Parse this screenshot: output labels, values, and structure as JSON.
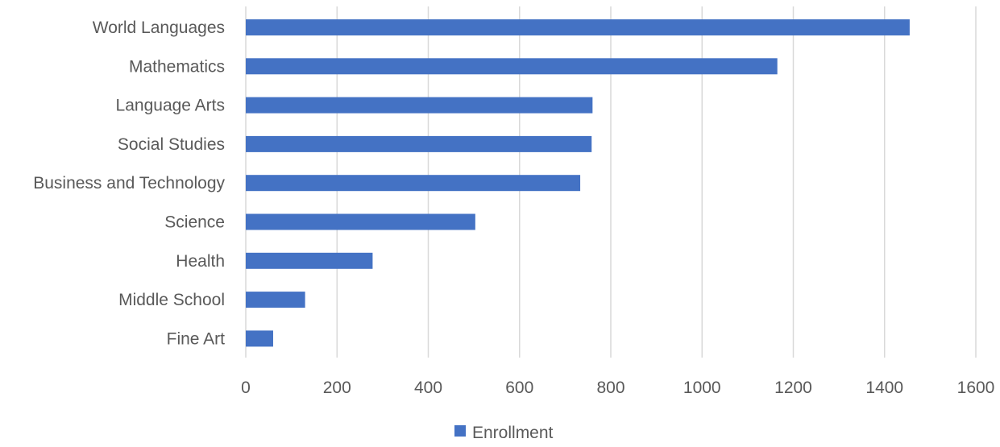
{
  "chart_data": {
    "type": "bar",
    "orientation": "horizontal",
    "categories": [
      "World Languages",
      "Mathematics",
      "Language Arts",
      "Social Studies",
      "Business and Technology",
      "Science",
      "Health",
      "Middle School",
      "Fine Art"
    ],
    "series": [
      {
        "name": "Enrollment",
        "color": "#4472C4",
        "values": [
          1455,
          1165,
          760,
          758,
          733,
          503,
          278,
          130,
          60
        ]
      }
    ],
    "xlim": [
      0,
      1600
    ],
    "xticks": [
      "0",
      "200",
      "400",
      "600",
      "800",
      "1000",
      "1200",
      "1400",
      "1600"
    ],
    "grid": "vertical",
    "legend": "bottom-center",
    "colors": {
      "bar": "#4472C4",
      "grid": "#D9D9D9",
      "text": "#595959"
    }
  }
}
